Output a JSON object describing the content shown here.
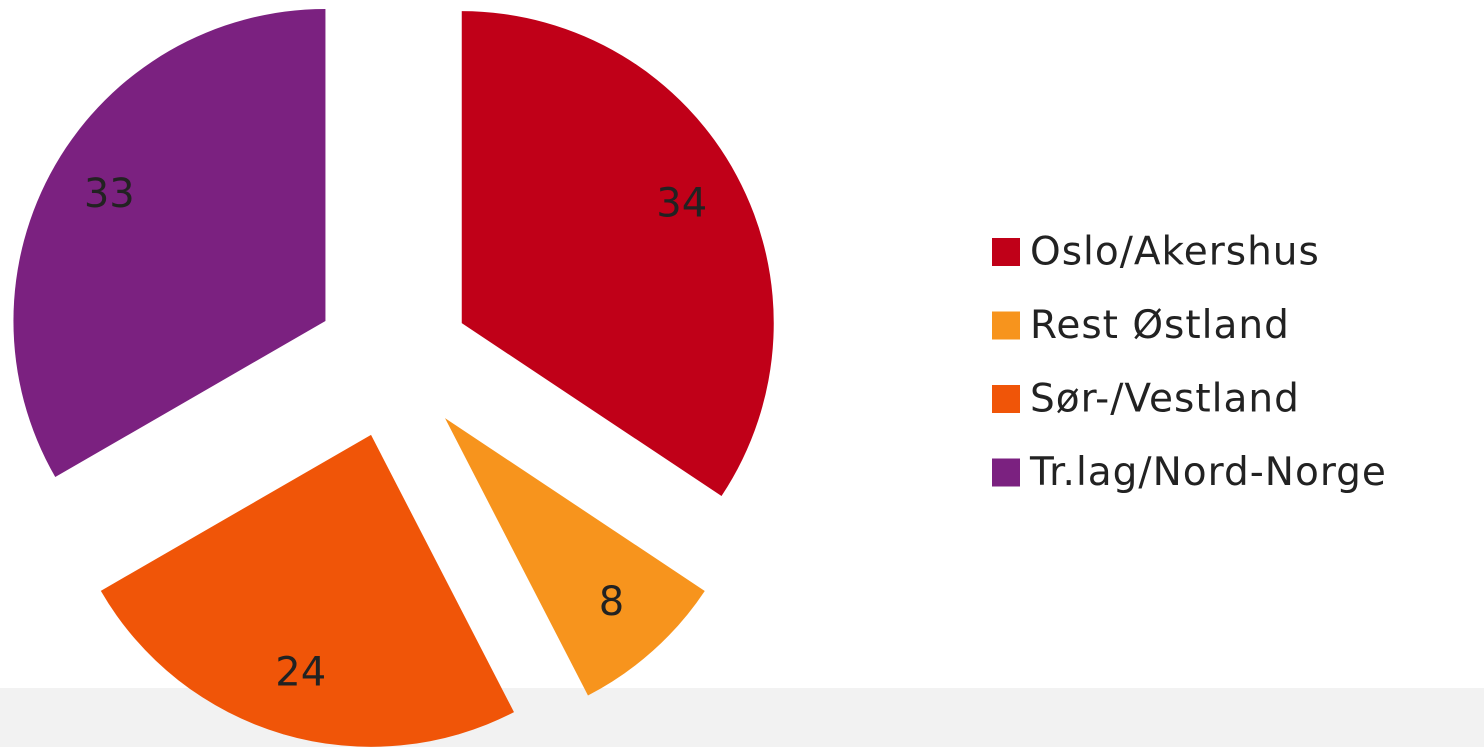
{
  "chart_data": {
    "type": "pie",
    "categories": [
      "Oslo/Akershus",
      "Rest Østland",
      "Sør-/Vestland",
      "Tr.lag/Nord-Norge"
    ],
    "values": [
      34,
      8,
      24,
      33
    ],
    "colors": [
      "#c00018",
      "#f7941d",
      "#f05508",
      "#7b2180"
    ],
    "exploded": true,
    "legend": "right"
  }
}
